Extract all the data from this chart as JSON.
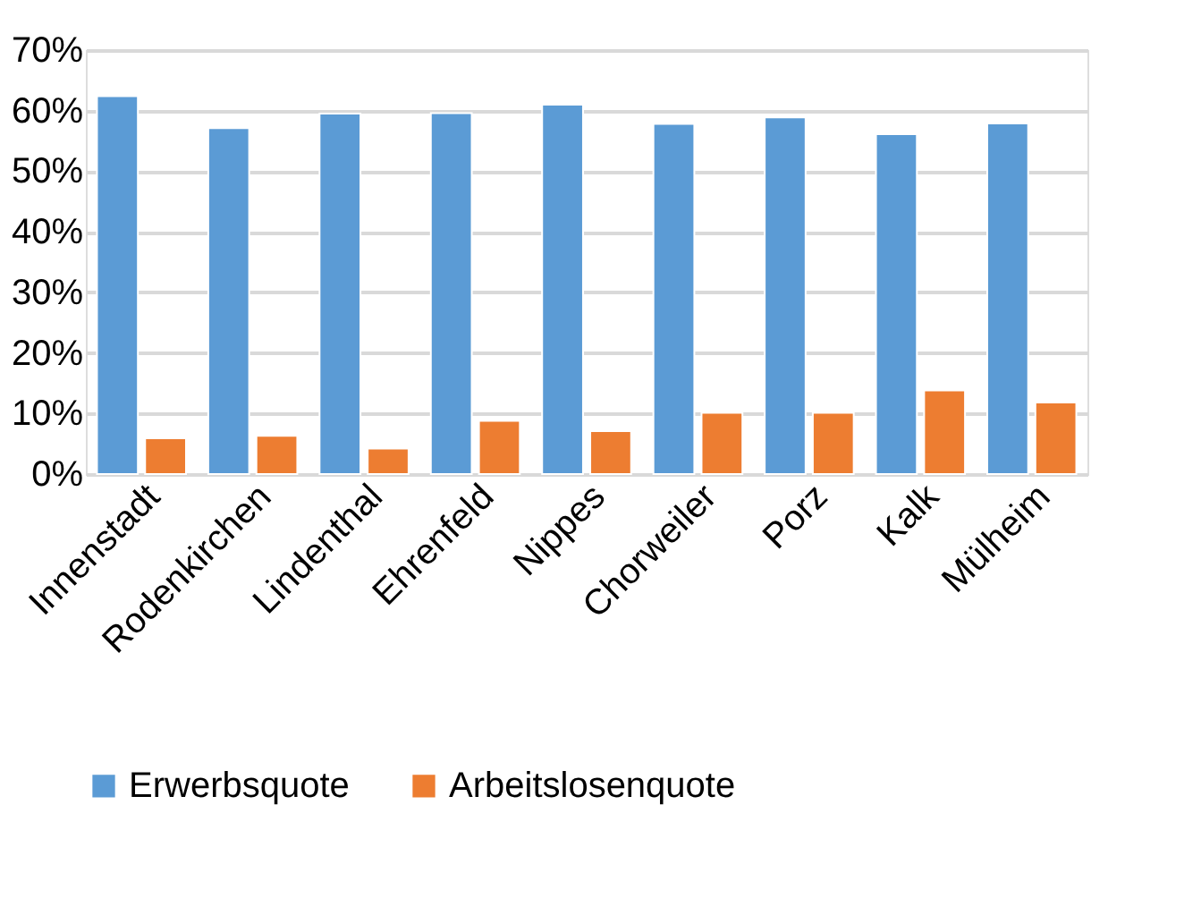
{
  "chart_data": {
    "type": "bar",
    "categories": [
      "Innenstadt",
      "Rodenkirchen",
      "Lindenthal",
      "Ehrenfeld",
      "Nippes",
      "Chorweiler",
      "Porz",
      "Kalk",
      "Mülheim"
    ],
    "series": [
      {
        "name": "Erwerbsquote",
        "color": "#5b9bd5",
        "values": [
          62.4,
          57.1,
          59.5,
          59.6,
          61.0,
          57.8,
          58.9,
          56.1,
          57.9
        ]
      },
      {
        "name": "Arbeitslosenquote",
        "color": "#ed7d31",
        "values": [
          5.9,
          6.3,
          4.2,
          8.8,
          7.1,
          10.1,
          10.1,
          13.8,
          11.8
        ]
      }
    ],
    "ylim": [
      0,
      70
    ],
    "yticks": [
      {
        "value": 0,
        "label": "0%"
      },
      {
        "value": 10,
        "label": "10%"
      },
      {
        "value": 20,
        "label": "20%"
      },
      {
        "value": 30,
        "label": "30%"
      },
      {
        "value": 40,
        "label": "40%"
      },
      {
        "value": 50,
        "label": "50%"
      },
      {
        "value": 60,
        "label": "60%"
      },
      {
        "value": 70,
        "label": "70%"
      }
    ],
    "grid": "y",
    "legend": "bottom"
  }
}
